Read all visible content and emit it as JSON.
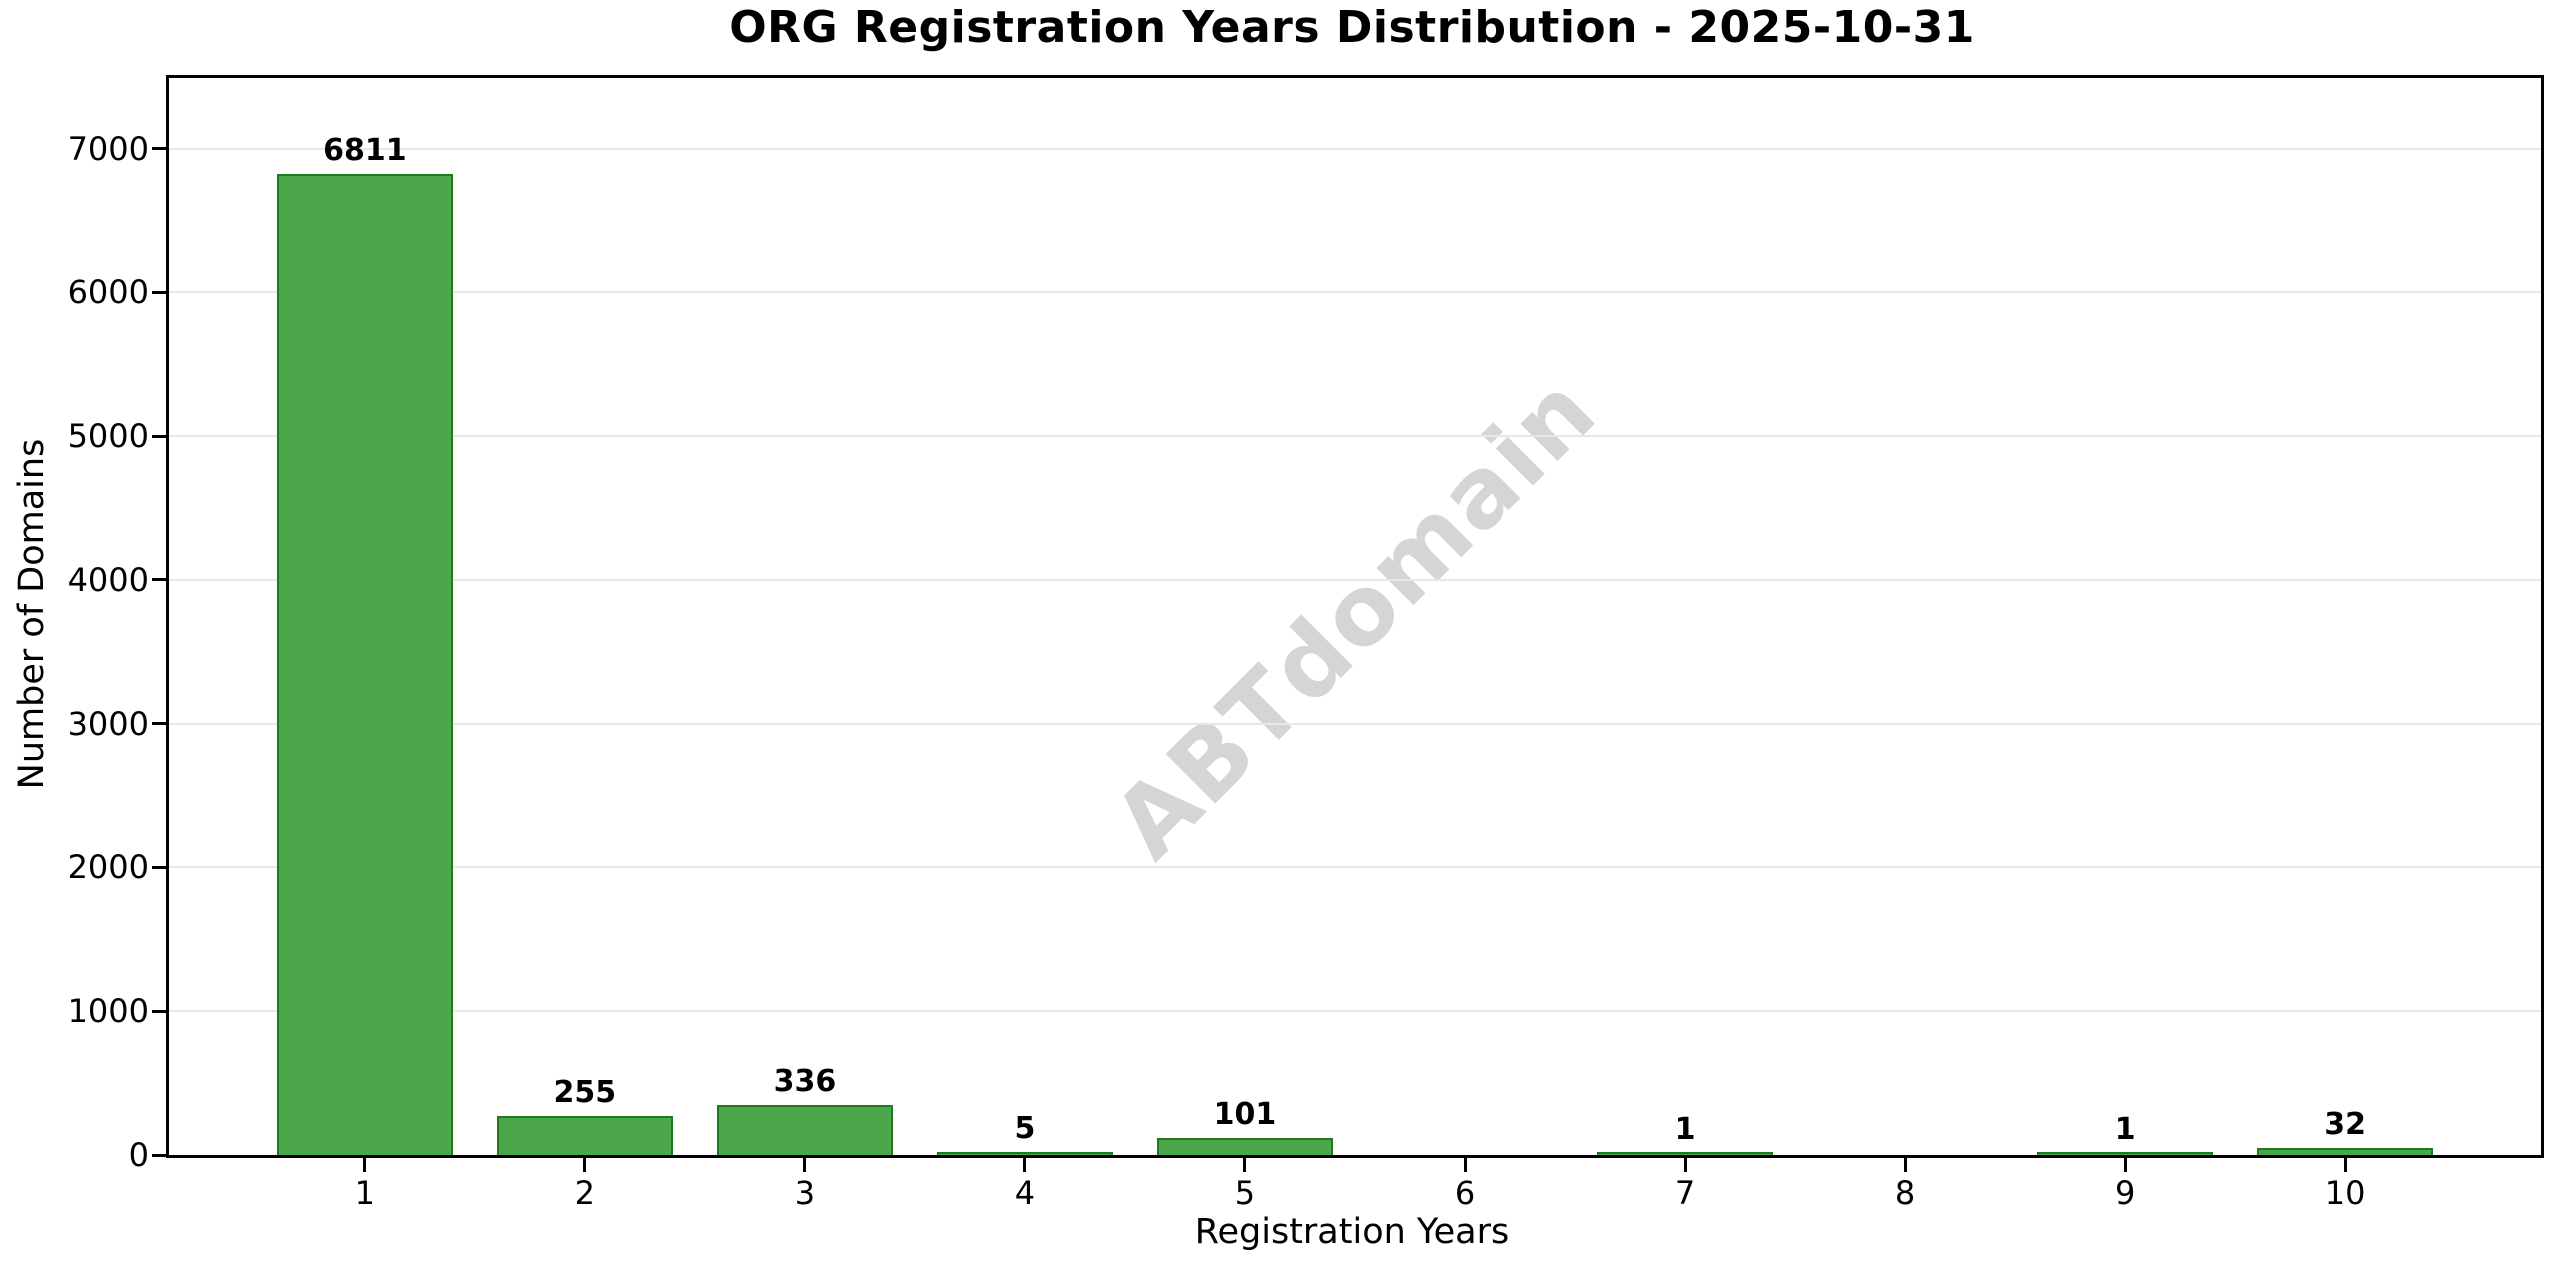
{
  "watermark": "ABTdomain",
  "chart_data": {
    "type": "bar",
    "title": "ORG Registration Years Distribution - 2025-10-31",
    "xlabel": "Registration Years",
    "ylabel": "Number of Domains",
    "categories": [
      1,
      2,
      3,
      4,
      5,
      6,
      7,
      8,
      9,
      10
    ],
    "values": [
      6811,
      255,
      336,
      5,
      101,
      0,
      1,
      0,
      1,
      32
    ],
    "value_labels_shown": [
      "6811",
      "255",
      "336",
      "5",
      "101",
      "",
      "1",
      "",
      "1",
      "32"
    ],
    "yticks": [
      0,
      1000,
      2000,
      3000,
      4000,
      5000,
      6000,
      7000
    ],
    "ylim": [
      0,
      7492
    ],
    "xlim": [
      0.11,
      10.89
    ],
    "bar_width_data_units": 0.8,
    "grid": true,
    "legend": "none",
    "bar_color": "#4ca64c",
    "bar_edge_color": "#1f7a1f",
    "grid_color": "#e7e7e7",
    "watermark_color": "#d5d5d5",
    "axis_color": "#000000",
    "background_color": "#ffffff"
  }
}
